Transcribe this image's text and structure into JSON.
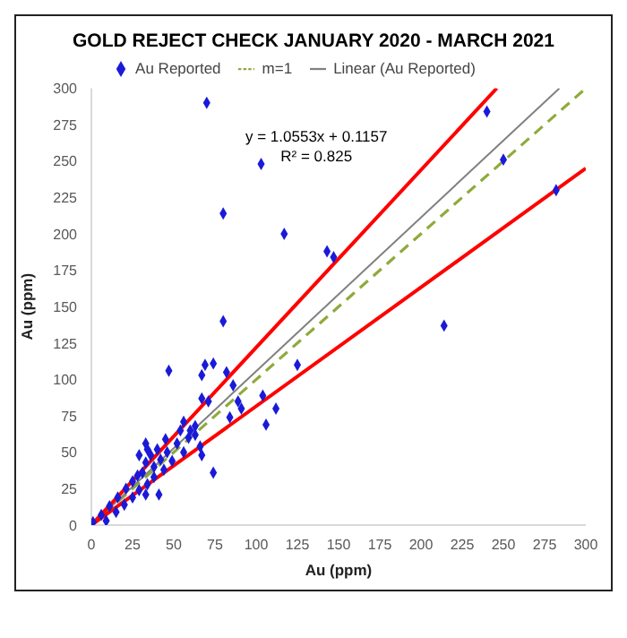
{
  "chart_data": {
    "type": "scatter",
    "title": "GOLD REJECT CHECK JANUARY 2020 - MARCH 2021",
    "xlabel": "Au (ppm)",
    "ylabel": "Au (ppm)",
    "annotations": [
      "y = 1.0553x + 0.1157",
      "R² = 0.825"
    ],
    "xlim": [
      0,
      300
    ],
    "ylim": [
      0,
      300
    ],
    "xticks": [
      0,
      25,
      50,
      75,
      100,
      125,
      150,
      175,
      200,
      225,
      250,
      275,
      300
    ],
    "yticks": [
      0,
      25,
      50,
      75,
      100,
      125,
      150,
      175,
      200,
      225,
      250,
      275,
      300
    ],
    "legend": "top",
    "series": [
      {
        "name": "Au Reported",
        "color": "#1a1ad8",
        "marker": "diamond",
        "x": [
          1,
          6,
          9,
          11,
          15,
          16,
          20,
          21,
          25,
          25,
          29,
          34,
          38,
          38,
          42,
          44,
          46,
          49,
          52,
          56,
          59,
          63,
          47,
          80,
          80,
          103,
          117,
          125,
          112,
          104,
          106,
          74,
          69,
          67,
          67,
          71,
          82,
          74,
          86,
          89,
          84,
          91,
          66,
          67,
          63,
          60,
          54,
          56,
          45,
          40,
          36,
          33,
          34,
          33,
          29,
          31,
          28,
          41,
          33,
          70,
          240,
          250,
          282,
          214,
          143,
          147
        ],
        "values": [
          2,
          7,
          3,
          13,
          9,
          19,
          14,
          25,
          19,
          30,
          24,
          28,
          33,
          40,
          45,
          38,
          50,
          44,
          56,
          50,
          60,
          62,
          106,
          214,
          140,
          248,
          200,
          110,
          80,
          89,
          69,
          111,
          110,
          103,
          87,
          85,
          105,
          36,
          96,
          85,
          74,
          80,
          54,
          48,
          68,
          65,
          65,
          71,
          59,
          52,
          48,
          56,
          52,
          43,
          48,
          36,
          34,
          21,
          21,
          290,
          284,
          251,
          230,
          137,
          188,
          184
        ]
      },
      {
        "name": "m=1",
        "type": "line",
        "color": "#8faa3c",
        "line_style": "dashed",
        "x": [
          0,
          300
        ],
        "values": [
          0,
          300
        ]
      },
      {
        "name": "Linear (Au Reported)",
        "type": "line",
        "color": "#808080",
        "x": [
          0,
          284
        ],
        "values": [
          0,
          300
        ]
      },
      {
        "type": "line",
        "color": "#ff0000",
        "x": [
          0,
          246
        ],
        "values": [
          0,
          300
        ]
      },
      {
        "type": "line",
        "color": "#ff0000",
        "x": [
          0,
          300
        ],
        "values": [
          0,
          245
        ]
      }
    ]
  }
}
